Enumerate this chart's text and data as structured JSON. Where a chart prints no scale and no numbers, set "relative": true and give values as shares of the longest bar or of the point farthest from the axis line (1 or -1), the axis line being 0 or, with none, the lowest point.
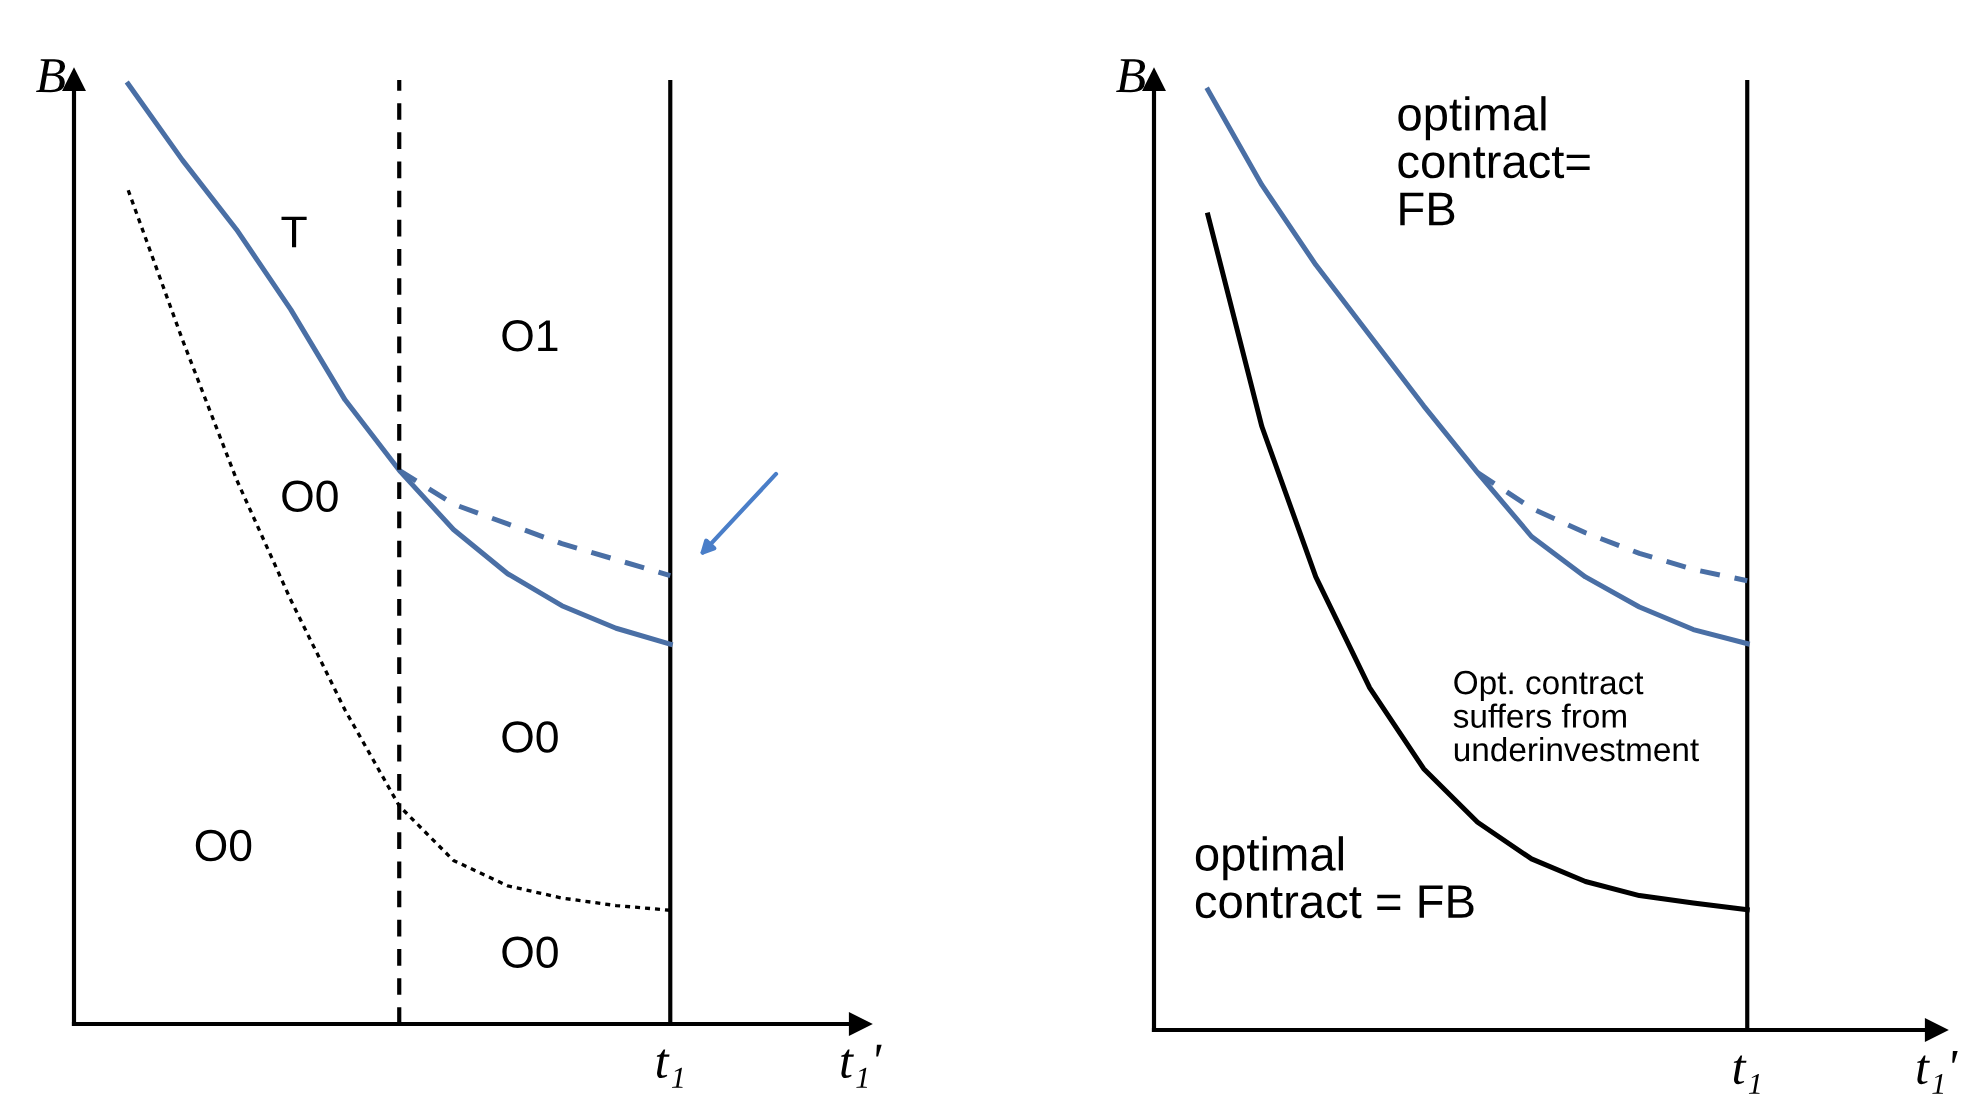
{
  "chart_data": [
    {
      "type": "line",
      "relative": true,
      "ylabel": "B",
      "xlabel": "t₁'",
      "legend": false,
      "marker": "none",
      "categories": [
        null,
        null,
        null,
        null,
        null,
        null,
        null,
        null,
        null,
        null,
        null,
        null
      ],
      "series": [
        {
          "color": "#4a6fa5",
          "line_style": "solid",
          "values": [
            null,
            1.0,
            0.919,
            0.845,
            0.76,
            0.664,
            0.589,
            0.526,
            0.479,
            0.445,
            0.421,
            0.404
          ]
        },
        {
          "color": "#4a6fa5",
          "line_style": "dashed",
          "values": [
            null,
            null,
            null,
            null,
            null,
            null,
            0.589,
            0.553,
            0.532,
            0.511,
            0.494,
            0.477
          ]
        },
        {
          "color": "#000000",
          "line_style": "dotted",
          "values": [
            null,
            0.887,
            0.728,
            0.579,
            0.451,
            0.334,
            0.232,
            0.174,
            0.147,
            0.134,
            0.126,
            0.121
          ]
        }
      ],
      "annotations": [
        "T",
        "O1",
        "O0",
        "O0",
        "O0",
        "O0",
        "t₁"
      ]
    },
    {
      "type": "line",
      "relative": true,
      "ylabel": "B",
      "xlabel": "t₁'",
      "legend": false,
      "marker": "none",
      "categories": [
        null,
        null,
        null,
        null,
        null,
        null,
        null,
        null,
        null,
        null,
        null,
        null
      ],
      "series": [
        {
          "color": "#4a6fa5",
          "line_style": "solid",
          "values": [
            null,
            1.0,
            0.899,
            0.814,
            0.739,
            0.664,
            0.593,
            0.525,
            0.482,
            0.45,
            0.426,
            0.411
          ]
        },
        {
          "color": "#4a6fa5",
          "line_style": "dashed",
          "values": [
            null,
            null,
            null,
            null,
            null,
            null,
            0.593,
            0.555,
            0.529,
            0.507,
            0.49,
            0.478
          ]
        },
        {
          "color": "#000000",
          "line_style": "solid",
          "values": [
            null,
            0.867,
            0.642,
            0.482,
            0.364,
            0.278,
            0.221,
            0.182,
            0.158,
            0.143,
            0.135,
            0.128
          ]
        }
      ],
      "annotations": [
        "optimal\ncontract=\nFB",
        "Opt. contract\nsuffers from\nunderinvestment",
        "optimal\ncontract = FB",
        "t₁"
      ]
    }
  ]
}
